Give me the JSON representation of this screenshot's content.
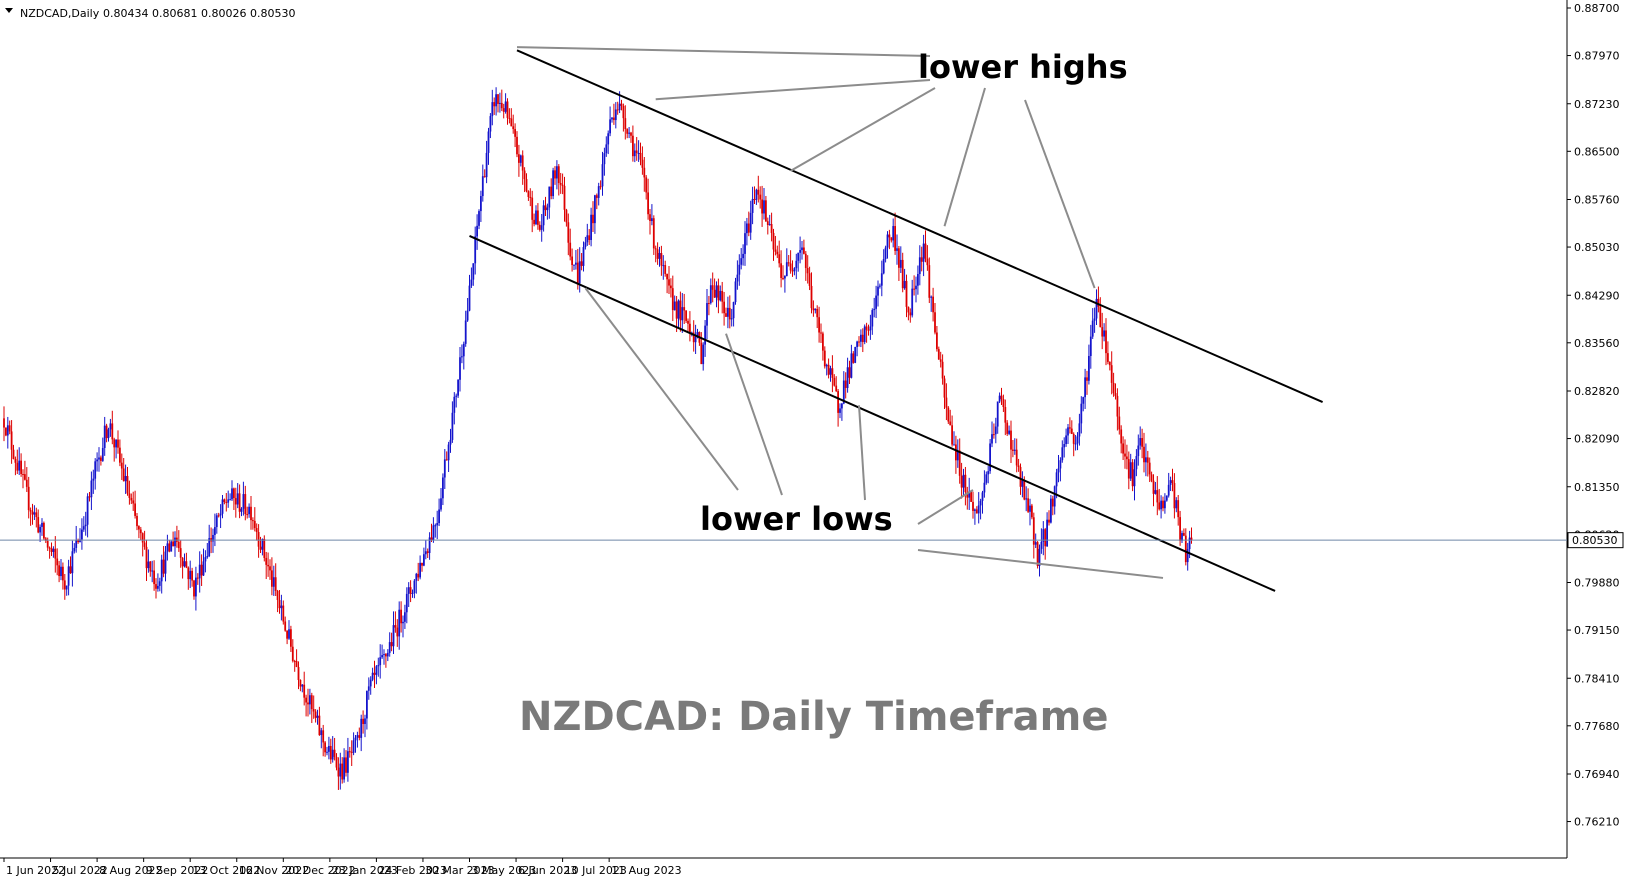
{
  "header": {
    "symbol_label": "NZDCAD,Daily",
    "ohlc": "0.80434 0.80681 0.80026 0.80530"
  },
  "colors": {
    "bull": "#1414cc",
    "bear": "#dd0000",
    "trendline": "#000000",
    "pointer": "#8c8c8c",
    "price_line": "#6f86a8",
    "background": "#ffffff"
  },
  "annotations": {
    "lower_highs": "lower highs",
    "lower_lows": "lower lows",
    "watermark": "NZDCAD: Daily Timeframe"
  },
  "chart_data": {
    "type": "candlestick",
    "timeframe": "Daily",
    "symbol": "NZDCAD",
    "ylim": [
      0.7585,
      0.887
    ],
    "y_ticks": [
      "0.88700",
      "0.87970",
      "0.87230",
      "0.86500",
      "0.85760",
      "0.85030",
      "0.84290",
      "0.83560",
      "0.82820",
      "0.82090",
      "0.81350",
      "0.80620",
      "0.79880",
      "0.79150",
      "0.78410",
      "0.77680",
      "0.76940",
      "0.76210"
    ],
    "x_ticks": [
      "1 Jun 2022",
      "5 Jul 2022",
      "8 Aug 2022",
      "9 Sep 2022",
      "13 Oct 2022",
      "16 Nov 2022",
      "20 Dec 2022",
      "23 Jan 2023",
      "24 Feb 2023",
      "30 Mar 2023",
      "3 May 2023",
      "6 Jun 2023",
      "10 Jul 2023",
      "11 Aug 2023"
    ],
    "current_price": "0.80530",
    "price_path": [
      [
        0,
        0.824
      ],
      [
        12,
        0.812
      ],
      [
        22,
        0.805
      ],
      [
        32,
        0.799
      ],
      [
        42,
        0.808
      ],
      [
        48,
        0.816
      ],
      [
        55,
        0.8235
      ],
      [
        63,
        0.815
      ],
      [
        72,
        0.805
      ],
      [
        80,
        0.799
      ],
      [
        90,
        0.806
      ],
      [
        100,
        0.798
      ],
      [
        108,
        0.805
      ],
      [
        118,
        0.812
      ],
      [
        130,
        0.81
      ],
      [
        140,
        0.8
      ],
      [
        153,
        0.787
      ],
      [
        162,
        0.779
      ],
      [
        170,
        0.773
      ],
      [
        178,
        0.77
      ],
      [
        186,
        0.774
      ],
      [
        192,
        0.782
      ],
      [
        200,
        0.787
      ],
      [
        208,
        0.793
      ],
      [
        216,
        0.799
      ],
      [
        222,
        0.804
      ],
      [
        228,
        0.809
      ],
      [
        232,
        0.817
      ],
      [
        237,
        0.826
      ],
      [
        241,
        0.835
      ],
      [
        246,
        0.845
      ],
      [
        250,
        0.856
      ],
      [
        254,
        0.865
      ],
      [
        258,
        0.873
      ],
      [
        263,
        0.872
      ],
      [
        267,
        0.868
      ],
      [
        272,
        0.863
      ],
      [
        277,
        0.857
      ],
      [
        282,
        0.853
      ],
      [
        287,
        0.858
      ],
      [
        291,
        0.863
      ],
      [
        295,
        0.857
      ],
      [
        298,
        0.85
      ],
      [
        302,
        0.846
      ],
      [
        308,
        0.853
      ],
      [
        313,
        0.859
      ],
      [
        318,
        0.868
      ],
      [
        322,
        0.8725
      ],
      [
        327,
        0.87
      ],
      [
        332,
        0.865
      ],
      [
        337,
        0.861
      ],
      [
        341,
        0.853
      ],
      [
        345,
        0.848
      ],
      [
        350,
        0.843
      ],
      [
        356,
        0.84
      ],
      [
        362,
        0.838
      ],
      [
        367,
        0.834
      ],
      [
        372,
        0.845
      ],
      [
        377,
        0.842
      ],
      [
        382,
        0.839
      ],
      [
        387,
        0.847
      ],
      [
        392,
        0.854
      ],
      [
        396,
        0.86
      ],
      [
        400,
        0.856
      ],
      [
        405,
        0.85
      ],
      [
        410,
        0.846
      ],
      [
        415,
        0.848
      ],
      [
        420,
        0.851
      ],
      [
        425,
        0.842
      ],
      [
        430,
        0.836
      ],
      [
        434,
        0.831
      ],
      [
        439,
        0.826
      ],
      [
        444,
        0.831
      ],
      [
        450,
        0.835
      ],
      [
        455,
        0.838
      ],
      [
        460,
        0.843
      ],
      [
        464,
        0.851
      ],
      [
        468,
        0.8525
      ],
      [
        472,
        0.847
      ],
      [
        476,
        0.84
      ],
      [
        480,
        0.846
      ],
      [
        484,
        0.851
      ],
      [
        488,
        0.842
      ],
      [
        492,
        0.833
      ],
      [
        496,
        0.825
      ],
      [
        500,
        0.82
      ],
      [
        504,
        0.815
      ],
      [
        508,
        0.812
      ],
      [
        512,
        0.809
      ],
      [
        516,
        0.814
      ],
      [
        520,
        0.82
      ],
      [
        524,
        0.827
      ],
      [
        528,
        0.823
      ],
      [
        532,
        0.818
      ],
      [
        536,
        0.813
      ],
      [
        540,
        0.809
      ],
      [
        544,
        0.803
      ],
      [
        548,
        0.806
      ],
      [
        552,
        0.812
      ],
      [
        556,
        0.818
      ],
      [
        560,
        0.823
      ],
      [
        564,
        0.82
      ],
      [
        568,
        0.827
      ],
      [
        572,
        0.836
      ],
      [
        575,
        0.8425
      ],
      [
        578,
        0.838
      ],
      [
        582,
        0.832
      ],
      [
        586,
        0.825
      ],
      [
        590,
        0.818
      ],
      [
        594,
        0.815
      ],
      [
        598,
        0.82
      ],
      [
        602,
        0.816
      ],
      [
        606,
        0.812
      ],
      [
        610,
        0.81
      ],
      [
        614,
        0.815
      ],
      [
        617,
        0.81
      ],
      [
        620,
        0.805
      ],
      [
        623,
        0.803
      ],
      [
        625,
        0.8053
      ]
    ],
    "trendlines": [
      {
        "name": "upper",
        "from": [
          270,
          0.8805
        ],
        "to": [
          694,
          0.8265
        ]
      },
      {
        "name": "lower",
        "from": [
          245,
          0.852
        ],
        "to": [
          669,
          0.7975
        ]
      }
    ],
    "annotation_targets": {
      "lower_highs": [
        [
          270,
          0.881
        ],
        [
          343,
          0.873
        ],
        [
          414,
          0.862
        ],
        [
          495,
          0.8535
        ],
        [
          574,
          0.844
        ]
      ],
      "lower_lows": [
        [
          306,
          0.844
        ],
        [
          380,
          0.837
        ],
        [
          450,
          0.826
        ],
        [
          510,
          0.813
        ],
        [
          610,
          0.7995
        ]
      ]
    }
  }
}
